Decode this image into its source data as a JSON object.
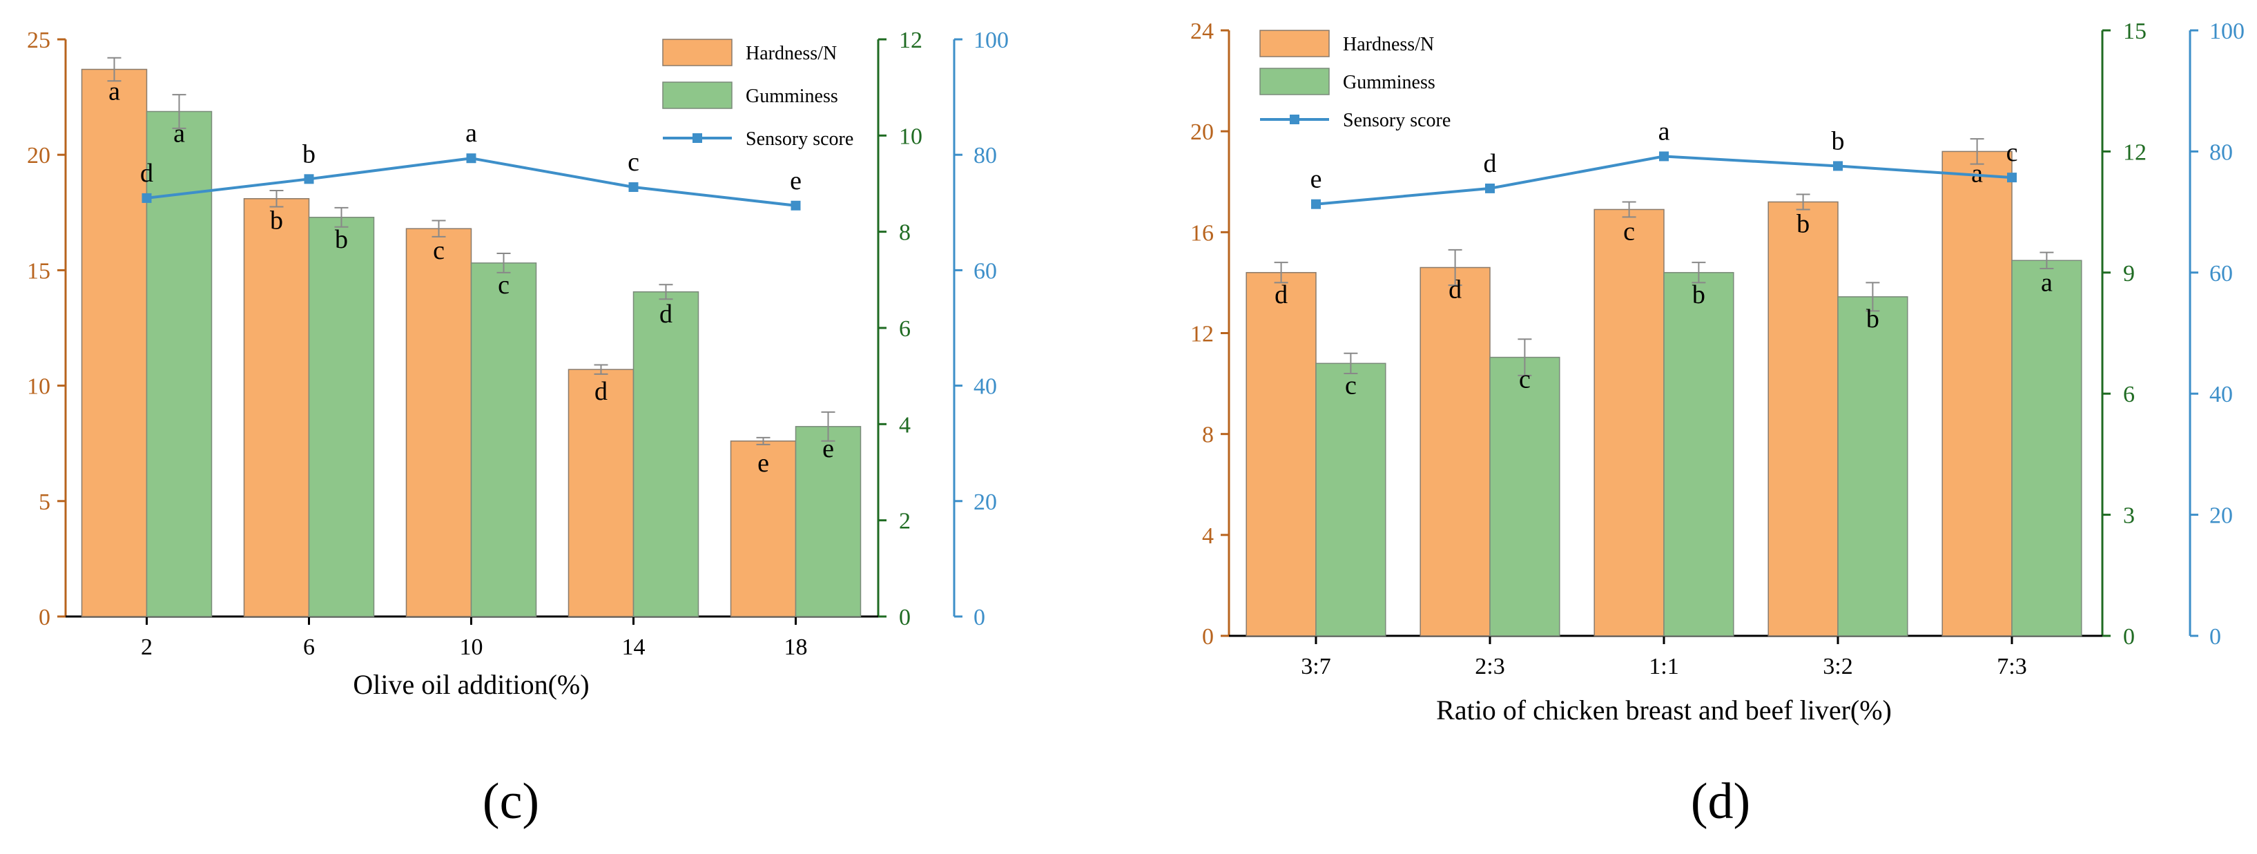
{
  "colors": {
    "hardness": "#F8AE6B",
    "hardness_edge": "#8a7a6a",
    "gumminess": "#8EC68A",
    "gumminess_edge": "#7a8a7a",
    "sensory": "#3D8FC9",
    "axis_left": "#B8641E",
    "axis_right1": "#1F6B22",
    "axis_right2": "#3D8FC9",
    "axis_bottom": "#000000",
    "errorbar": "#888888"
  },
  "chart_data": [
    {
      "panel_label": "(c)",
      "type": "bar",
      "xlabel": "Olive oil addition(%)",
      "categories": [
        "2",
        "6",
        "10",
        "14",
        "18"
      ],
      "legend": [
        "Hardness/N",
        "Gumminess",
        "Sensory score"
      ],
      "legend_position": "top-right",
      "axes": {
        "left": {
          "range": [
            0,
            25
          ],
          "ticks": [
            "0",
            "5",
            "10",
            "15",
            "20",
            "25"
          ]
        },
        "right1": {
          "range": [
            0,
            12
          ],
          "ticks": [
            "0",
            "2",
            "4",
            "6",
            "8",
            "10",
            "12"
          ]
        },
        "right2": {
          "range": [
            0,
            100
          ],
          "ticks": [
            "0",
            "20",
            "40",
            "60",
            "80",
            "100"
          ]
        }
      },
      "series": [
        {
          "name": "Hardness/N",
          "type": "bar",
          "axis": "left",
          "values": [
            23.7,
            18.1,
            16.8,
            10.7,
            7.6
          ],
          "errors": [
            0.5,
            0.35,
            0.35,
            0.2,
            0.15
          ],
          "letters": [
            "a",
            "b",
            "c",
            "d",
            "e"
          ]
        },
        {
          "name": "Gumminess",
          "type": "bar",
          "axis": "right1",
          "values": [
            10.5,
            8.3,
            7.35,
            6.75,
            3.95
          ],
          "errors": [
            0.35,
            0.2,
            0.2,
            0.15,
            0.3
          ],
          "letters": [
            "a",
            "b",
            "c",
            "d",
            "e"
          ]
        },
        {
          "name": "Sensory score",
          "type": "line",
          "axis": "right2",
          "values": [
            72.5,
            75.8,
            79.4,
            74.4,
            71.2
          ],
          "letters": [
            "d",
            "b",
            "a",
            "c",
            "e"
          ]
        }
      ]
    },
    {
      "panel_label": "(d)",
      "type": "bar",
      "xlabel": "Ratio of chicken breast and beef liver(%)",
      "categories": [
        "3:7",
        "2:3",
        "1:1",
        "3:2",
        "7:3"
      ],
      "legend": [
        "Hardness/N",
        "Gumminess",
        "Sensory score"
      ],
      "legend_position": "top-left",
      "axes": {
        "left": {
          "range": [
            0,
            24
          ],
          "ticks": [
            "0",
            "4",
            "8",
            "12",
            "16",
            "20",
            "24"
          ]
        },
        "right1": {
          "range": [
            0,
            15
          ],
          "ticks": [
            "0",
            "3",
            "6",
            "9",
            "12",
            "15"
          ]
        },
        "right2": {
          "range": [
            0,
            100
          ],
          "ticks": [
            "0",
            "20",
            "40",
            "60",
            "80",
            "100"
          ]
        }
      },
      "series": [
        {
          "name": "Hardness/N",
          "type": "bar",
          "axis": "left",
          "values": [
            14.4,
            14.6,
            16.9,
            17.2,
            19.2
          ],
          "errors": [
            0.4,
            0.7,
            0.3,
            0.3,
            0.5
          ],
          "letters": [
            "d",
            "d",
            "c",
            "b",
            "a"
          ]
        },
        {
          "name": "Gumminess",
          "type": "bar",
          "axis": "right1",
          "values": [
            6.75,
            6.9,
            9.0,
            8.4,
            9.3
          ],
          "errors": [
            0.25,
            0.45,
            0.25,
            0.35,
            0.2
          ],
          "letters": [
            "c",
            "c",
            "b",
            "b",
            "a"
          ]
        },
        {
          "name": "Sensory score",
          "type": "line",
          "axis": "right2",
          "values": [
            71.3,
            73.9,
            79.2,
            77.6,
            75.7
          ],
          "letters": [
            "e",
            "d",
            "a",
            "b",
            "c"
          ]
        }
      ]
    }
  ]
}
